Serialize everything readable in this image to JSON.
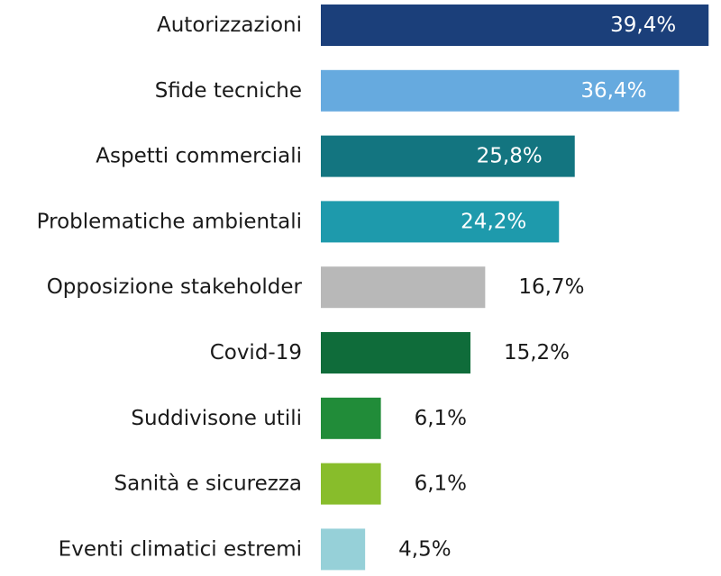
{
  "chart_data": {
    "type": "bar",
    "orientation": "horizontal",
    "title": "",
    "xlabel": "",
    "ylabel": "",
    "unit": "%",
    "xlim": [
      0,
      40
    ],
    "grid": false,
    "legend": "none",
    "categories": [
      "Autorizzazioni",
      "Sfide tecniche",
      "Aspetti commerciali",
      "Problematiche ambientali",
      "Opposizione stakeholder",
      "Covid-19",
      "Suddivisone utili",
      "Sanità e sicurezza",
      "Eventi climatici estremi"
    ],
    "values": [
      39.4,
      36.4,
      25.8,
      24.2,
      16.7,
      15.2,
      6.1,
      6.1,
      4.5
    ],
    "value_labels": [
      "39,4%",
      "36,4%",
      "25,8%",
      "24,2%",
      "16,7%",
      "15,2%",
      "6,1%",
      "6,1%",
      "4,5%"
    ],
    "colors": [
      "#1b3f7a",
      "#66aadf",
      "#137580",
      "#1e9aac",
      "#b8b8b8",
      "#0f6c3a",
      "#218c39",
      "#88bd2b",
      "#96d0d8"
    ],
    "label_inside": [
      true,
      true,
      true,
      true,
      false,
      false,
      false,
      false,
      false
    ],
    "inside_label_color": "#ffffff",
    "outside_label_color": "#1a1a1a"
  }
}
